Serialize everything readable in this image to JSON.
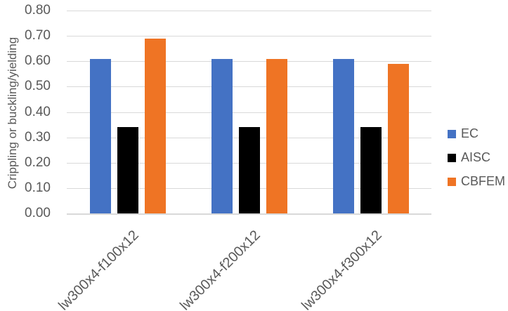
{
  "chart_data": {
    "type": "bar",
    "title": "",
    "categories": [
      "lw300x4-f100x12",
      "lw300x4-f200x12",
      "lw300x4-f300x12"
    ],
    "series": [
      {
        "name": "EC",
        "color": "#4472C4",
        "values": [
          0.61,
          0.61,
          0.61
        ]
      },
      {
        "name": "AISC",
        "color": "#000000",
        "values": [
          0.34,
          0.34,
          0.34
        ]
      },
      {
        "name": "CBFEM",
        "color": "#EF7424",
        "values": [
          0.69,
          0.61,
          0.59
        ]
      }
    ],
    "xlabel": "",
    "ylabel": "Crippling or buckling/yielding",
    "ylim": [
      0,
      0.8
    ],
    "yticks": [
      0,
      0.1,
      0.2,
      0.3,
      0.4,
      0.5,
      0.6,
      0.7,
      0.8
    ],
    "ytick_labels": [
      "0.00",
      "0.10",
      "0.20",
      "0.30",
      "0.40",
      "0.50",
      "0.60",
      "0.70",
      "0.80"
    ],
    "grid": true,
    "legend_position": "right",
    "colors": {
      "gridline": "#D9D9D9",
      "axis_line": "#D9D9D9",
      "text": "#595959",
      "background": "#FFFFFF"
    }
  }
}
